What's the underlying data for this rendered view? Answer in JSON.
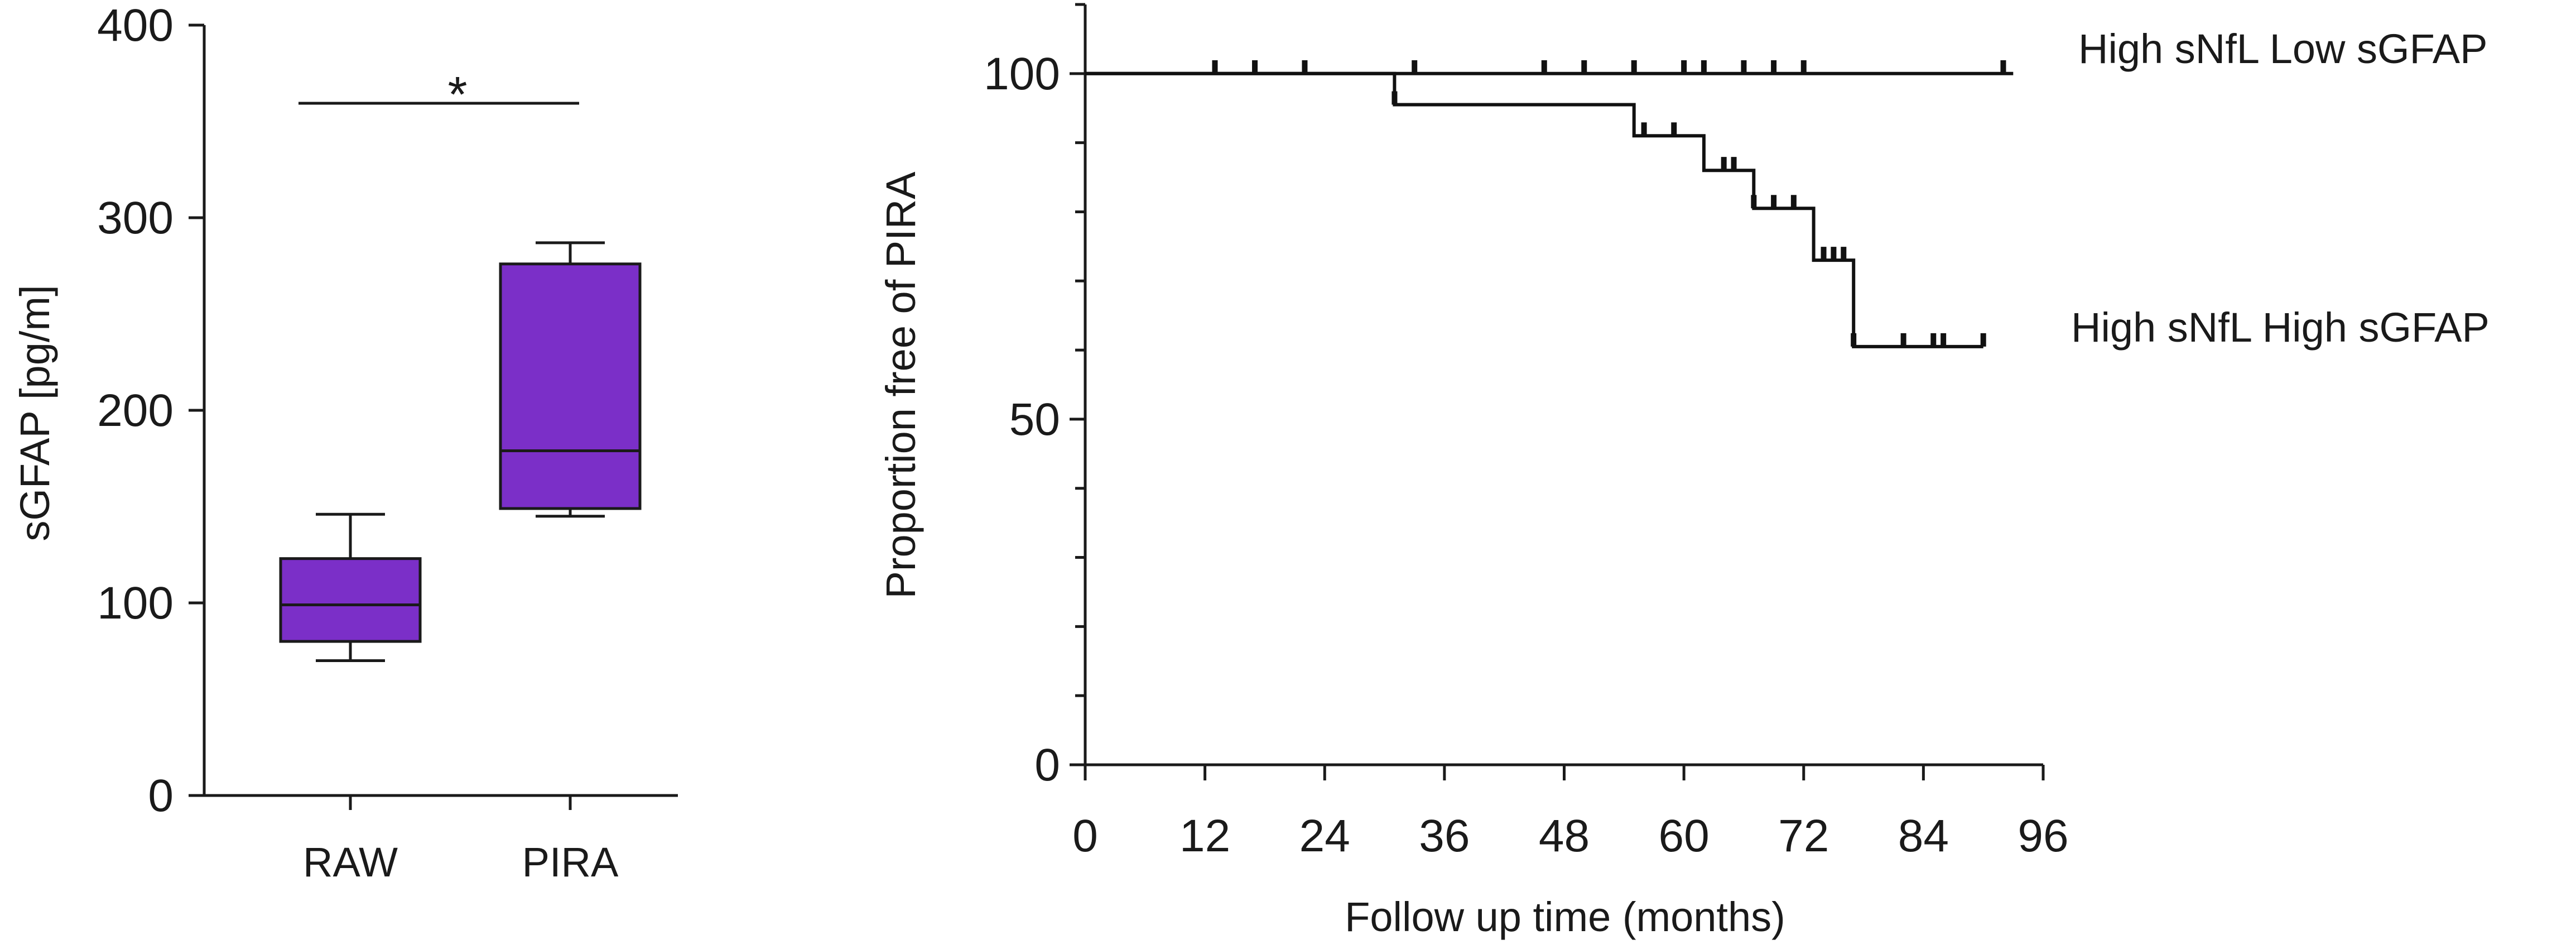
{
  "colors": {
    "box_fill": "#7B2FC8",
    "line": "#111111"
  },
  "chart_data": [
    {
      "type": "box",
      "ylabel": "sGFAP [pg/m]",
      "ylim": [
        0,
        400
      ],
      "yticks": [
        0,
        100,
        200,
        300,
        400
      ],
      "categories": [
        "RAW",
        "PIRA"
      ],
      "boxes": [
        {
          "name": "RAW",
          "min": 70,
          "q1": 80,
          "median": 99,
          "q3": 123,
          "max": 146
        },
        {
          "name": "PIRA",
          "min": 145,
          "q1": 149,
          "median": 179,
          "q3": 276,
          "max": 287
        }
      ],
      "significance": {
        "between": [
          "RAW",
          "PIRA"
        ],
        "label": "*"
      }
    },
    {
      "type": "line",
      "subtype": "kaplan-meier",
      "xlabel": "Follow up time (months)",
      "ylabel": "Proportion free of PIRA",
      "xlim": [
        0,
        96
      ],
      "ylim": [
        0,
        110
      ],
      "xticks": [
        0,
        12,
        24,
        36,
        48,
        60,
        72,
        84,
        96
      ],
      "yticks": [
        0,
        50,
        100
      ],
      "series": [
        {
          "name": "High sNfL Low sGFAP",
          "steps": [
            [
              0,
              100
            ],
            [
              93,
              100
            ]
          ],
          "censored": [
            13,
            17,
            22,
            33,
            46,
            50,
            55,
            60,
            62,
            66,
            69,
            72,
            92
          ]
        },
        {
          "name": "High sNfL High sGFAP",
          "steps": [
            [
              0,
              100
            ],
            [
              31,
              100
            ],
            [
              31,
              95.5
            ],
            [
              55,
              95.5
            ],
            [
              55,
              91
            ],
            [
              62,
              91
            ],
            [
              62,
              86
            ],
            [
              67,
              86
            ],
            [
              67,
              80.5
            ],
            [
              73,
              80.5
            ],
            [
              73,
              73
            ],
            [
              77,
              73
            ],
            [
              77,
              60.5
            ],
            [
              90,
              60.5
            ]
          ],
          "censored": [
            31,
            56,
            59,
            64,
            65,
            67,
            69,
            71,
            74,
            75,
            76,
            77,
            82,
            85,
            86,
            90
          ]
        }
      ]
    }
  ]
}
